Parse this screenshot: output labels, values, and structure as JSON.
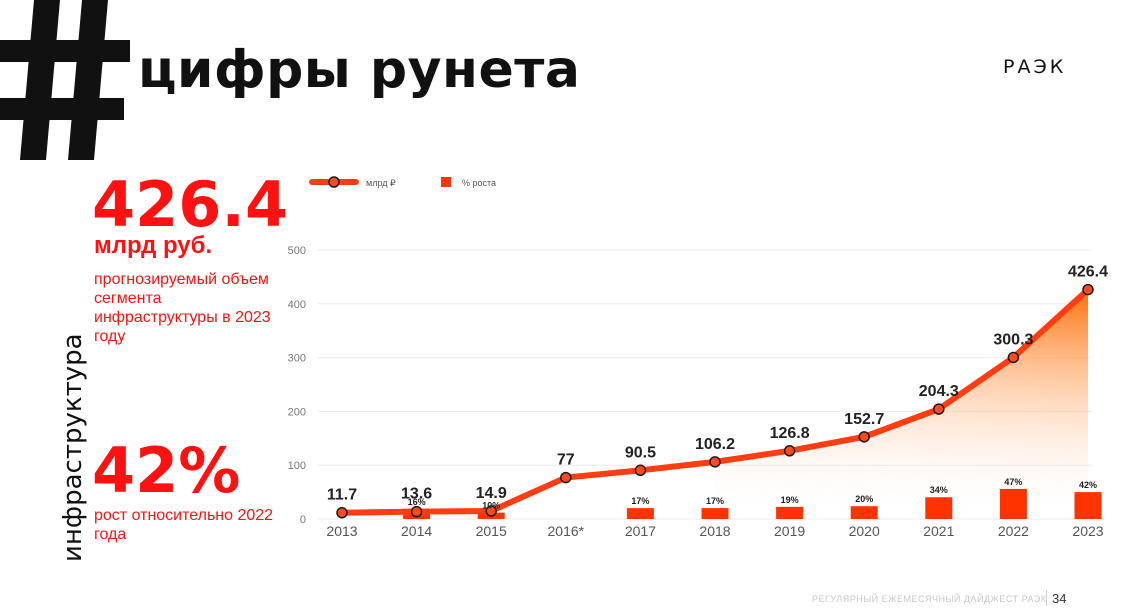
{
  "header": {
    "title": "цифры рунета",
    "logo": "РАЭК"
  },
  "side_label": "инфраструктура",
  "left_stats": {
    "main_value": "426.4",
    "main_unit": "млрд руб.",
    "main_desc": "прогнозируемый объем сегмента инфраструктуры в 2023 году",
    "growth_value": "42%",
    "growth_desc": "рост относительно 2022 года"
  },
  "footer": {
    "text": "РЕГУЛЯРНЫЙ ЕЖЕМЕСЯЧНЫЙ ДАЙДЖЕСТ РАЭК",
    "page": "34"
  },
  "colors": {
    "accent": "#ff1111",
    "line": "#ff3d12",
    "bar": "#ff3300",
    "area": "#ff6a00"
  },
  "chart_data": {
    "type": "line",
    "categories": [
      "2013",
      "2014",
      "2015",
      "2016*",
      "2017",
      "2018",
      "2019",
      "2020",
      "2021",
      "2022",
      "2023"
    ],
    "ylim": [
      0,
      500
    ],
    "yticks": [
      0,
      100,
      200,
      300,
      400,
      500
    ],
    "legend_position": "top-left",
    "grid": true,
    "series": [
      {
        "name": "млрд ₽",
        "type": "line",
        "values": [
          11.7,
          13.6,
          14.9,
          77,
          90.5,
          106.2,
          126.8,
          152.7,
          204.3,
          300.3,
          426.4
        ],
        "labels": [
          "11.7",
          "13.6",
          "14.9",
          "77",
          "90.5",
          "106.2",
          "126.8",
          "152.7",
          "204.3",
          "300.3",
          "426.4"
        ]
      },
      {
        "name": "% роста",
        "type": "bar",
        "values": [
          null,
          16,
          10,
          null,
          17,
          17,
          19,
          20,
          34,
          47,
          42
        ],
        "labels": [
          "",
          "16%",
          "10%",
          "",
          "17%",
          "17%",
          "19%",
          "20%",
          "34%",
          "47%",
          "42%"
        ]
      }
    ]
  }
}
